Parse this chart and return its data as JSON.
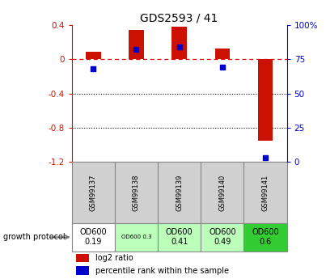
{
  "title": "GDS2593 / 41",
  "samples": [
    "GSM99137",
    "GSM99138",
    "GSM99139",
    "GSM99140",
    "GSM99141"
  ],
  "log2_ratio": [
    0.09,
    0.34,
    0.38,
    0.13,
    -0.95
  ],
  "percentile_rank": [
    68,
    82,
    84,
    69,
    3
  ],
  "ylim_left": [
    -1.2,
    0.4
  ],
  "ylim_right": [
    0,
    100
  ],
  "yticks_left": [
    -1.2,
    -0.8,
    -0.4,
    0.0,
    0.4
  ],
  "yticks_right": [
    0,
    25,
    50,
    75,
    100
  ],
  "bar_color": "#cc1100",
  "dot_color": "#0000cc",
  "growth_protocol": [
    "OD600\n0.19",
    "OD600 0.3",
    "OD600\n0.41",
    "OD600\n0.49",
    "OD600\n0.6"
  ],
  "growth_bg_colors": [
    "#ffffff",
    "#bbffbb",
    "#bbffbb",
    "#bbffbb",
    "#33cc33"
  ],
  "growth_text_small": [
    false,
    true,
    false,
    false,
    false
  ],
  "label_log2": "log2 ratio",
  "label_pct": "percentile rank within the sample",
  "bar_width": 0.35,
  "hline_color": "#dd0000",
  "grid_color": "#000000",
  "left_label_color": "#cc1100",
  "right_label_color": "#0000cc",
  "cell_border_color": "#888888",
  "gray_bg": "#d0d0d0"
}
